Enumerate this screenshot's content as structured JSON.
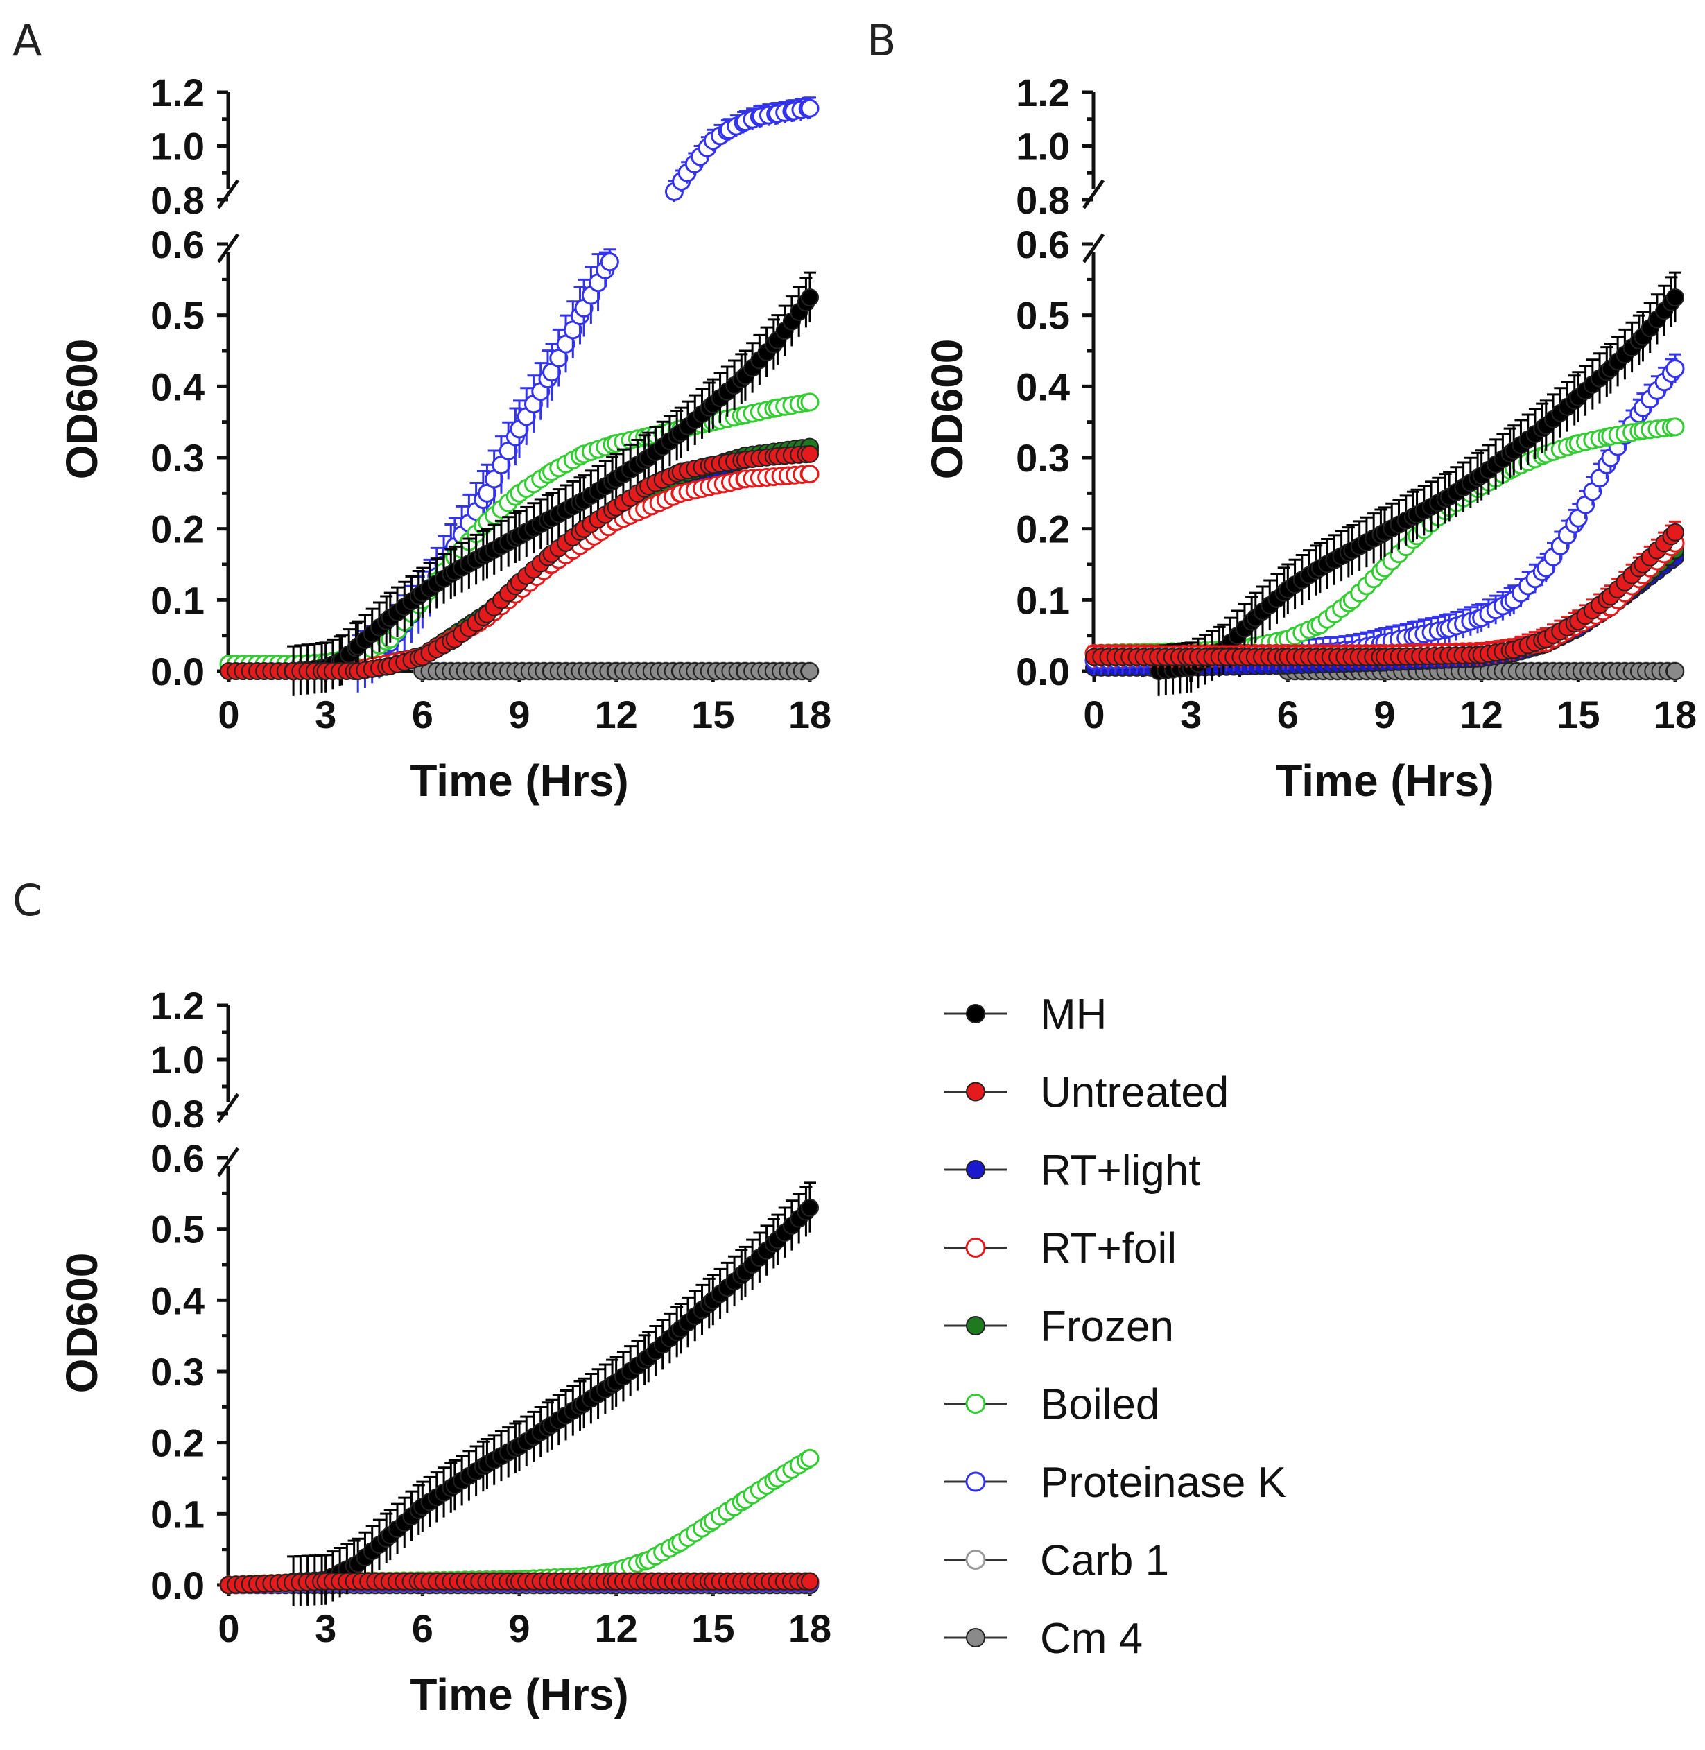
{
  "panels": [
    {
      "letter": "A"
    },
    {
      "letter": "B"
    },
    {
      "letter": "C"
    }
  ],
  "axes": {
    "xlabel": "Time (Hrs)",
    "ylabel": "OD600",
    "xticks": [
      "0",
      "3",
      "6",
      "9",
      "12",
      "15",
      "18"
    ],
    "yticks_lower": [
      "0.0",
      "0.1",
      "0.2",
      "0.3",
      "0.4",
      "0.5",
      "0.6"
    ],
    "yticks_upper": [
      "0.8",
      "1.0",
      "1.2"
    ]
  },
  "legend": [
    {
      "label": "MH",
      "color": "#000000",
      "filled": true
    },
    {
      "label": "Untreated",
      "color": "#e41a1c",
      "filled": true
    },
    {
      "label": "RT+light",
      "color": "#1a1acc",
      "filled": true
    },
    {
      "label": "RT+foil",
      "color": "#e41a1c",
      "filled": false
    },
    {
      "label": "Frozen",
      "color": "#1f7a1f",
      "filled": true
    },
    {
      "label": "Boiled",
      "color": "#33cc33",
      "filled": false
    },
    {
      "label": "Proteinase K",
      "color": "#3333ee",
      "filled": false
    },
    {
      "label": "Carb 1",
      "color": "#9a9a9a",
      "filled": false
    },
    {
      "label": "Cm 4",
      "color": "#8a8a8a",
      "filled": true
    }
  ],
  "chart_data": [
    {
      "panel": "A",
      "type": "scatter",
      "xlabel": "Time (Hrs)",
      "ylabel": "OD600",
      "xlim": [
        0,
        18
      ],
      "ylim_lower": [
        0,
        0.6
      ],
      "ylim_upper": [
        0.8,
        1.2
      ],
      "series": [
        {
          "name": "MH",
          "x": [
            2,
            3,
            3.5,
            4,
            5,
            6,
            7,
            8,
            9,
            10,
            11,
            12,
            13,
            14,
            15,
            16,
            17,
            18
          ],
          "y": [
            0.0,
            0.005,
            0.015,
            0.035,
            0.075,
            0.11,
            0.14,
            0.165,
            0.19,
            0.215,
            0.24,
            0.27,
            0.3,
            0.335,
            0.375,
            0.415,
            0.465,
            0.525
          ],
          "err": 0.035
        },
        {
          "name": "Untreated",
          "x": [
            0,
            2,
            3,
            4,
            5,
            6,
            7,
            8,
            9,
            10,
            11,
            12,
            13,
            14,
            15,
            16,
            17,
            18
          ],
          "y": [
            0.0,
            0.0,
            0.0,
            0.0,
            0.007,
            0.02,
            0.045,
            0.08,
            0.125,
            0.165,
            0.2,
            0.23,
            0.26,
            0.28,
            0.29,
            0.297,
            0.302,
            0.305
          ]
        },
        {
          "name": "RT+light",
          "x": [
            2,
            4,
            6,
            8,
            10,
            12,
            14,
            16,
            18
          ],
          "y": [
            0.0,
            0.003,
            0.02,
            0.08,
            0.16,
            0.225,
            0.27,
            0.297,
            0.31
          ]
        },
        {
          "name": "RT+foil",
          "x": [
            2,
            4,
            6,
            8,
            10,
            12,
            14,
            16,
            18
          ],
          "y": [
            0.0,
            0.003,
            0.02,
            0.075,
            0.15,
            0.21,
            0.25,
            0.27,
            0.277
          ]
        },
        {
          "name": "Frozen",
          "x": [
            2,
            4,
            6,
            8,
            10,
            12,
            14,
            16,
            18
          ],
          "y": [
            0.0,
            0.003,
            0.022,
            0.082,
            0.162,
            0.228,
            0.275,
            0.303,
            0.315
          ]
        },
        {
          "name": "Boiled",
          "x": [
            0,
            2,
            3,
            4,
            5,
            6,
            7,
            8,
            9,
            10,
            11,
            12,
            13,
            14,
            15,
            16,
            17,
            18
          ],
          "y": [
            0.01,
            0.01,
            0.012,
            0.02,
            0.045,
            0.1,
            0.16,
            0.21,
            0.25,
            0.28,
            0.305,
            0.32,
            0.33,
            0.34,
            0.35,
            0.36,
            0.37,
            0.378
          ]
        },
        {
          "name": "Proteinase K",
          "x": [
            4,
            5,
            6,
            7,
            8,
            9,
            10,
            11,
            11.8
          ],
          "y": [
            0.01,
            0.04,
            0.1,
            0.175,
            0.25,
            0.34,
            0.42,
            0.51,
            0.575
          ],
          "err": 0.04
        },
        {
          "name": "Proteinase K",
          "x": [
            13.8,
            14.2,
            14.6,
            15,
            15.5,
            16,
            16.5,
            17,
            17.5,
            18
          ],
          "y": [
            0.83,
            0.9,
            0.96,
            1.02,
            1.06,
            1.09,
            1.11,
            1.12,
            1.13,
            1.14
          ],
          "err": 0.04
        },
        {
          "name": "Carb 1",
          "x": [
            6,
            8,
            10,
            12,
            14,
            16,
            18
          ],
          "y": [
            0.0,
            0.0,
            0.0,
            0.0,
            0.0,
            0.0,
            0.0
          ]
        },
        {
          "name": "Cm 4",
          "x": [
            6,
            8,
            10,
            12,
            14,
            16,
            18
          ],
          "y": [
            0.0,
            0.0,
            0.0,
            0.0,
            0.0,
            0.0,
            0.0
          ]
        }
      ]
    },
    {
      "panel": "B",
      "type": "scatter",
      "xlabel": "Time (Hrs)",
      "ylabel": "OD600",
      "xlim": [
        0,
        18
      ],
      "ylim_lower": [
        0,
        0.6
      ],
      "ylim_upper": [
        0.8,
        1.2
      ],
      "series": [
        {
          "name": "MH",
          "x": [
            2,
            3,
            4,
            5,
            6,
            7,
            8,
            9,
            10,
            11,
            12,
            13,
            14,
            15,
            16,
            17,
            18
          ],
          "y": [
            0.0,
            0.005,
            0.03,
            0.075,
            0.115,
            0.145,
            0.17,
            0.195,
            0.22,
            0.245,
            0.275,
            0.31,
            0.345,
            0.385,
            0.425,
            0.47,
            0.525
          ],
          "err": 0.035
        },
        {
          "name": "Untreated",
          "x": [
            0,
            3,
            6,
            9,
            12,
            13,
            14,
            15,
            16,
            17,
            18
          ],
          "y": [
            0.02,
            0.02,
            0.02,
            0.02,
            0.023,
            0.03,
            0.045,
            0.07,
            0.105,
            0.15,
            0.195
          ],
          "err": 0.015
        },
        {
          "name": "RT+light",
          "x": [
            0,
            3,
            6,
            9,
            12,
            13,
            14,
            15,
            16,
            17,
            18
          ],
          "y": [
            0.005,
            0.005,
            0.008,
            0.012,
            0.018,
            0.025,
            0.038,
            0.06,
            0.09,
            0.125,
            0.16
          ]
        },
        {
          "name": "RT+foil",
          "x": [
            0,
            3,
            6,
            9,
            12,
            14,
            16,
            17,
            18
          ],
          "y": [
            0.025,
            0.025,
            0.025,
            0.025,
            0.028,
            0.04,
            0.09,
            0.135,
            0.18
          ]
        },
        {
          "name": "Frozen",
          "x": [
            0,
            3,
            6,
            9,
            12,
            14,
            16,
            18
          ],
          "y": [
            0.02,
            0.02,
            0.02,
            0.02,
            0.023,
            0.038,
            0.09,
            0.17
          ]
        },
        {
          "name": "Boiled",
          "x": [
            0,
            3,
            4,
            5,
            6,
            7,
            8,
            9,
            10,
            11,
            12,
            13,
            14,
            15,
            16,
            17,
            18
          ],
          "y": [
            0.025,
            0.028,
            0.03,
            0.035,
            0.045,
            0.065,
            0.1,
            0.145,
            0.19,
            0.23,
            0.26,
            0.285,
            0.305,
            0.32,
            0.33,
            0.338,
            0.343
          ]
        },
        {
          "name": "Proteinase K",
          "x": [
            0,
            3,
            6,
            8,
            9,
            10,
            11,
            12,
            13,
            14,
            15,
            16,
            17,
            18
          ],
          "y": [
            0.015,
            0.018,
            0.022,
            0.03,
            0.04,
            0.05,
            0.06,
            0.075,
            0.1,
            0.145,
            0.215,
            0.3,
            0.37,
            0.425
          ],
          "err": 0.02
        },
        {
          "name": "Carb 1",
          "x": [
            6,
            8,
            10,
            12,
            14,
            16,
            18
          ],
          "y": [
            0.0,
            0.0,
            0.0,
            0.0,
            0.0,
            0.0,
            0.0
          ]
        },
        {
          "name": "Cm 4",
          "x": [
            6,
            8,
            10,
            12,
            14,
            16,
            18
          ],
          "y": [
            0.0,
            0.0,
            0.0,
            0.0,
            0.0,
            0.0,
            0.0
          ]
        }
      ]
    },
    {
      "panel": "C",
      "type": "scatter",
      "xlabel": "Time (Hrs)",
      "ylabel": "OD600",
      "xlim": [
        0,
        18
      ],
      "ylim_lower": [
        0,
        0.6
      ],
      "ylim_upper": [
        0.8,
        1.2
      ],
      "series": [
        {
          "name": "MH",
          "x": [
            2,
            3,
            4,
            5,
            6,
            7,
            8,
            9,
            10,
            11,
            12,
            13,
            14,
            15,
            16,
            17,
            18
          ],
          "y": [
            0.005,
            0.007,
            0.03,
            0.07,
            0.11,
            0.14,
            0.17,
            0.195,
            0.225,
            0.255,
            0.285,
            0.32,
            0.36,
            0.4,
            0.44,
            0.485,
            0.53
          ],
          "err": 0.035
        },
        {
          "name": "Untreated",
          "x": [
            0,
            3,
            6,
            9,
            12,
            15,
            18
          ],
          "y": [
            0.0,
            0.005,
            0.005,
            0.005,
            0.005,
            0.005,
            0.005
          ]
        },
        {
          "name": "RT+light",
          "x": [
            0,
            3,
            6,
            9,
            12,
            15,
            18
          ],
          "y": [
            0.0,
            0.003,
            0.003,
            0.003,
            0.003,
            0.003,
            0.003
          ]
        },
        {
          "name": "RT+foil",
          "x": [
            0,
            3,
            6,
            9,
            12,
            15,
            18
          ],
          "y": [
            0.0,
            0.005,
            0.005,
            0.005,
            0.005,
            0.005,
            0.005
          ]
        },
        {
          "name": "Frozen",
          "x": [
            0,
            3,
            6,
            9,
            12,
            15,
            18
          ],
          "y": [
            0.0,
            0.004,
            0.004,
            0.004,
            0.004,
            0.004,
            0.004
          ]
        },
        {
          "name": "Boiled",
          "x": [
            0,
            3,
            6,
            9,
            11,
            12,
            13,
            14,
            15,
            16,
            17,
            18
          ],
          "y": [
            0.0,
            0.005,
            0.006,
            0.008,
            0.012,
            0.02,
            0.035,
            0.06,
            0.09,
            0.12,
            0.15,
            0.178
          ]
        },
        {
          "name": "Proteinase K",
          "x": [
            0,
            3,
            6,
            9,
            12,
            15,
            18
          ],
          "y": [
            0.0,
            0.003,
            0.003,
            0.003,
            0.003,
            0.003,
            0.003
          ]
        },
        {
          "name": "Carb 1",
          "x": [
            0,
            3,
            6,
            9,
            12,
            15,
            18
          ],
          "y": [
            0.0,
            0.0,
            0.0,
            0.0,
            0.0,
            0.0,
            0.0
          ]
        },
        {
          "name": "Cm 4",
          "x": [
            0,
            3,
            6,
            9,
            12,
            15,
            18
          ],
          "y": [
            0.0,
            0.0,
            0.0,
            0.0,
            0.0,
            0.0,
            0.0
          ]
        }
      ]
    }
  ]
}
